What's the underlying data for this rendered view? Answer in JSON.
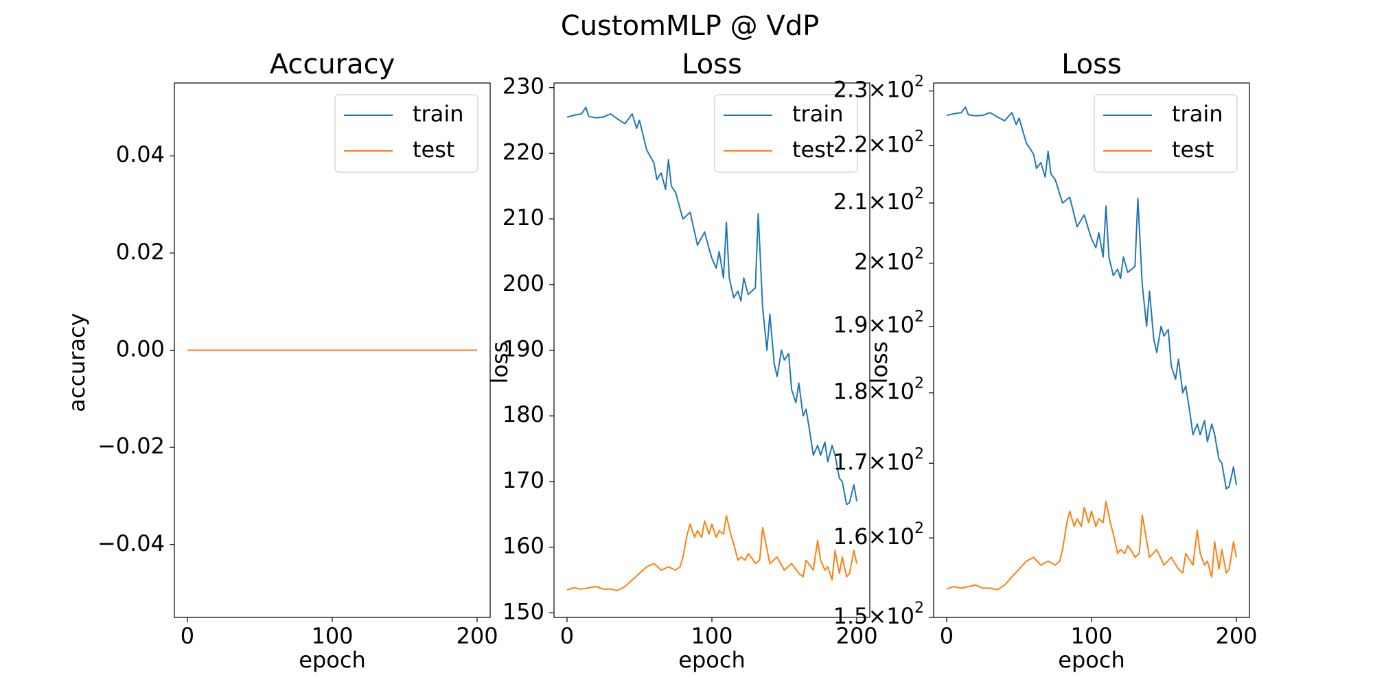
{
  "figure": {
    "title": "CustomMLP @ VdP"
  },
  "colors": {
    "train": "#1f77b4",
    "test": "#ff7f0e",
    "axis": "#000000"
  },
  "chart_data": [
    {
      "type": "line",
      "title": "Accuracy",
      "xlabel": "epoch",
      "ylabel": "accuracy",
      "scale": "linear",
      "xlim": [
        -9,
        209
      ],
      "ylim": [
        -0.055,
        0.055
      ],
      "xticks": [
        0,
        100,
        200
      ],
      "xtick_labels": [
        "0",
        "100",
        "200"
      ],
      "yticks": [
        -0.04,
        -0.02,
        0.0,
        0.02,
        0.04
      ],
      "ytick_labels": [
        "−0.04",
        "−0.02",
        "0.00",
        "0.02",
        "0.04"
      ],
      "legend": {
        "position": "top-right",
        "entries": [
          "train",
          "test"
        ]
      },
      "grid": false,
      "series": [
        {
          "name": "train",
          "color_key": "train",
          "x": [
            0,
            200
          ],
          "y": [
            0,
            0
          ]
        },
        {
          "name": "test",
          "color_key": "test",
          "x": [
            0,
            200
          ],
          "y": [
            0,
            0
          ]
        }
      ]
    },
    {
      "type": "line",
      "title": "Loss",
      "xlabel": "epoch",
      "ylabel": "loss",
      "scale": "linear",
      "xlim": [
        -9,
        209
      ],
      "ylim": [
        149.3,
        230.7
      ],
      "xticks": [
        0,
        100,
        200
      ],
      "xtick_labels": [
        "0",
        "100",
        "200"
      ],
      "yticks": [
        150,
        160,
        170,
        180,
        190,
        200,
        210,
        220,
        230
      ],
      "ytick_labels": [
        "150",
        "160",
        "170",
        "180",
        "190",
        "200",
        "210",
        "220",
        "230"
      ],
      "legend": {
        "position": "top-right",
        "entries": [
          "train",
          "test"
        ]
      },
      "grid": false,
      "series": [
        {
          "name": "train",
          "color_key": "train",
          "x": [
            0,
            5,
            10,
            13,
            15,
            20,
            25,
            30,
            35,
            40,
            45,
            48,
            50,
            55,
            60,
            62,
            65,
            68,
            70,
            72,
            75,
            80,
            85,
            88,
            90,
            95,
            98,
            100,
            103,
            105,
            108,
            110,
            112,
            115,
            118,
            120,
            122,
            125,
            130,
            132,
            135,
            138,
            140,
            143,
            145,
            148,
            150,
            153,
            155,
            158,
            160,
            163,
            165,
            168,
            170,
            173,
            175,
            178,
            180,
            183,
            185,
            188,
            190,
            193,
            195,
            198,
            200
          ],
          "y": [
            225.5,
            225.8,
            226.0,
            227.0,
            225.6,
            225.4,
            225.5,
            226.0,
            225.2,
            224.5,
            226.0,
            223.8,
            225.0,
            220.5,
            218.5,
            216.0,
            217.0,
            214.5,
            219.0,
            215.0,
            214.0,
            210.0,
            211.0,
            208.0,
            206.0,
            208.0,
            205.5,
            204.0,
            202.5,
            205.0,
            201.0,
            209.5,
            201.0,
            198.0,
            199.0,
            197.5,
            201.0,
            198.5,
            199.5,
            210.8,
            196.5,
            190.0,
            195.5,
            188.0,
            186.0,
            190.0,
            188.5,
            189.5,
            184.0,
            182.0,
            185.0,
            180.0,
            181.0,
            177.0,
            174.0,
            175.5,
            174.0,
            176.0,
            173.0,
            175.5,
            174.0,
            170.5,
            170.0,
            166.5,
            166.8,
            169.5,
            167.0
          ]
        },
        {
          "name": "test",
          "color_key": "test",
          "x": [
            0,
            5,
            10,
            15,
            20,
            25,
            30,
            35,
            40,
            45,
            50,
            55,
            60,
            65,
            70,
            75,
            78,
            80,
            83,
            85,
            88,
            90,
            93,
            95,
            98,
            100,
            103,
            105,
            108,
            110,
            113,
            115,
            118,
            120,
            123,
            125,
            128,
            130,
            133,
            135,
            140,
            145,
            150,
            155,
            160,
            163,
            165,
            170,
            173,
            175,
            178,
            180,
            183,
            185,
            188,
            190,
            193,
            195,
            198,
            200
          ],
          "y": [
            153.5,
            153.8,
            153.6,
            153.8,
            154.0,
            153.6,
            153.6,
            153.4,
            154.0,
            155.0,
            156.0,
            157.0,
            157.5,
            156.5,
            157.0,
            156.5,
            157.0,
            158.5,
            162.0,
            163.5,
            161.5,
            162.5,
            161.5,
            164.0,
            162.0,
            163.5,
            161.5,
            162.5,
            162.0,
            164.8,
            162.0,
            160.5,
            158.0,
            158.5,
            158.0,
            159.0,
            158.2,
            157.5,
            158.0,
            163.0,
            157.5,
            158.5,
            156.5,
            157.5,
            156.0,
            155.5,
            158.0,
            156.5,
            161.0,
            158.0,
            156.5,
            157.0,
            155.0,
            159.5,
            156.0,
            158.5,
            155.5,
            156.0,
            159.5,
            157.5
          ]
        }
      ]
    },
    {
      "type": "line",
      "title": "Loss",
      "xlabel": "epoch",
      "ylabel": "loss",
      "scale": "log",
      "xlim": [
        -9,
        209
      ],
      "ylim": [
        150,
        231.5
      ],
      "xticks": [
        0,
        100,
        200
      ],
      "xtick_labels": [
        "0",
        "100",
        "200"
      ],
      "yticks": [
        150,
        160,
        170,
        180,
        190,
        200,
        210,
        220,
        230
      ],
      "ytick_labels": [
        {
          "mantissa": "1.5",
          "base": "10",
          "exponent": "2"
        },
        {
          "mantissa": "1.6",
          "base": "10",
          "exponent": "2"
        },
        {
          "mantissa": "1.7",
          "base": "10",
          "exponent": "2"
        },
        {
          "mantissa": "1.8",
          "base": "10",
          "exponent": "2"
        },
        {
          "mantissa": "1.9",
          "base": "10",
          "exponent": "2"
        },
        {
          "mantissa": "2",
          "base": "10",
          "exponent": "2"
        },
        {
          "mantissa": "2.1",
          "base": "10",
          "exponent": "2"
        },
        {
          "mantissa": "2.2",
          "base": "10",
          "exponent": "2"
        },
        {
          "mantissa": "2.3",
          "base": "10",
          "exponent": "2"
        }
      ],
      "legend": {
        "position": "top-right",
        "entries": [
          "train",
          "test"
        ]
      },
      "grid": false,
      "series": [
        {
          "name": "train",
          "color_key": "train",
          "x": [
            0,
            5,
            10,
            13,
            15,
            20,
            25,
            30,
            35,
            40,
            45,
            48,
            50,
            55,
            60,
            62,
            65,
            68,
            70,
            72,
            75,
            80,
            85,
            88,
            90,
            95,
            98,
            100,
            103,
            105,
            108,
            110,
            112,
            115,
            118,
            120,
            122,
            125,
            130,
            132,
            135,
            138,
            140,
            143,
            145,
            148,
            150,
            153,
            155,
            158,
            160,
            163,
            165,
            168,
            170,
            173,
            175,
            178,
            180,
            183,
            185,
            188,
            190,
            193,
            195,
            198,
            200
          ],
          "y": [
            225.5,
            225.8,
            226.0,
            227.0,
            225.6,
            225.4,
            225.5,
            226.0,
            225.2,
            224.5,
            226.0,
            223.8,
            225.0,
            220.5,
            218.5,
            216.0,
            217.0,
            214.5,
            219.0,
            215.0,
            214.0,
            210.0,
            211.0,
            208.0,
            206.0,
            208.0,
            205.5,
            204.0,
            202.5,
            205.0,
            201.0,
            209.5,
            201.0,
            198.0,
            199.0,
            197.5,
            201.0,
            198.5,
            199.5,
            210.8,
            196.5,
            190.0,
            195.5,
            188.0,
            186.0,
            190.0,
            188.5,
            189.5,
            184.0,
            182.0,
            185.0,
            180.0,
            181.0,
            177.0,
            174.0,
            175.5,
            174.0,
            176.0,
            173.0,
            175.5,
            174.0,
            170.5,
            170.0,
            166.5,
            166.8,
            169.5,
            167.0
          ]
        },
        {
          "name": "test",
          "color_key": "test",
          "x": [
            0,
            5,
            10,
            15,
            20,
            25,
            30,
            35,
            40,
            45,
            50,
            55,
            60,
            65,
            70,
            75,
            78,
            80,
            83,
            85,
            88,
            90,
            93,
            95,
            98,
            100,
            103,
            105,
            108,
            110,
            113,
            115,
            118,
            120,
            123,
            125,
            128,
            130,
            133,
            135,
            140,
            145,
            150,
            155,
            160,
            163,
            165,
            170,
            173,
            175,
            178,
            180,
            183,
            185,
            188,
            190,
            193,
            195,
            198,
            200
          ],
          "y": [
            153.5,
            153.8,
            153.6,
            153.8,
            154.0,
            153.6,
            153.6,
            153.4,
            154.0,
            155.0,
            156.0,
            157.0,
            157.5,
            156.5,
            157.0,
            156.5,
            157.0,
            158.5,
            162.0,
            163.5,
            161.5,
            162.5,
            161.5,
            164.0,
            162.0,
            163.5,
            161.5,
            162.5,
            162.0,
            164.8,
            162.0,
            160.5,
            158.0,
            158.5,
            158.0,
            159.0,
            158.2,
            157.5,
            158.0,
            163.0,
            157.5,
            158.5,
            156.5,
            157.5,
            156.0,
            155.5,
            158.0,
            156.5,
            161.0,
            158.0,
            156.5,
            157.0,
            155.0,
            159.5,
            156.0,
            158.5,
            155.5,
            156.0,
            159.5,
            157.5
          ]
        }
      ]
    }
  ]
}
